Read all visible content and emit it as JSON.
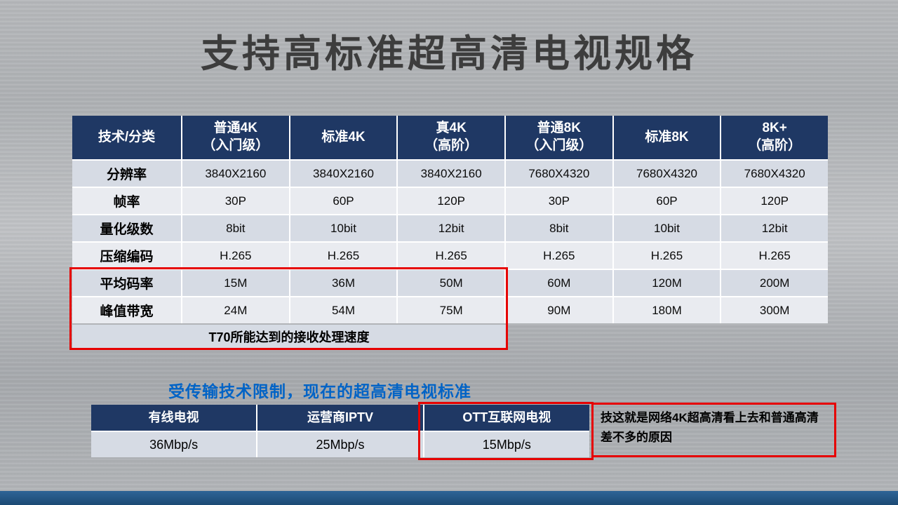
{
  "colors": {
    "header-bg": "#1f3864",
    "band-dark": "#d6dbe4",
    "band-light": "#e9ebf0",
    "highlight-red": "#e60000",
    "subtitle-blue": "#0063c6",
    "title-gray": "#3d3d3d",
    "bottom-bar": "#1c4a74"
  },
  "title": "支持高标准超高清电视规格",
  "main_table": {
    "headers": [
      "技术/分类",
      "普通4K\n（入门级）",
      "标准4K",
      "真4K\n（高阶）",
      "普通8K\n（入门级）",
      "标准8K",
      "8K+\n（高阶）"
    ],
    "rows": [
      {
        "label": "分辨率",
        "values": [
          "3840X2160",
          "3840X2160",
          "3840X2160",
          "7680X4320",
          "7680X4320",
          "7680X4320"
        ]
      },
      {
        "label": "帧率",
        "values": [
          "30P",
          "60P",
          "120P",
          "30P",
          "60P",
          "120P"
        ]
      },
      {
        "label": "量化级数",
        "values": [
          "8bit",
          "10bit",
          "12bit",
          "8bit",
          "10bit",
          "12bit"
        ]
      },
      {
        "label": "压缩编码",
        "values": [
          "H.265",
          "H.265",
          "H.265",
          "H.265",
          "H.265",
          "H.265"
        ]
      },
      {
        "label": "平均码率",
        "values": [
          "15M",
          "36M",
          "50M",
          "60M",
          "120M",
          "200M"
        ]
      },
      {
        "label": "峰值带宽",
        "values": [
          "24M",
          "54M",
          "75M",
          "90M",
          "180M",
          "300M"
        ]
      }
    ],
    "highlight_caption": "T70所能达到的接收处理速度"
  },
  "subtitle": "受传输技术限制，现在的超高清电视标准",
  "bandwidth_table": {
    "headers": [
      "有线电视",
      "运营商IPTV",
      "OTT互联网电视"
    ],
    "values": [
      "36Mbp/s",
      "25Mbp/s",
      "15Mbp/s"
    ]
  },
  "note": "技这就是网络4K超高清看上去和普通高清差不多的原因"
}
